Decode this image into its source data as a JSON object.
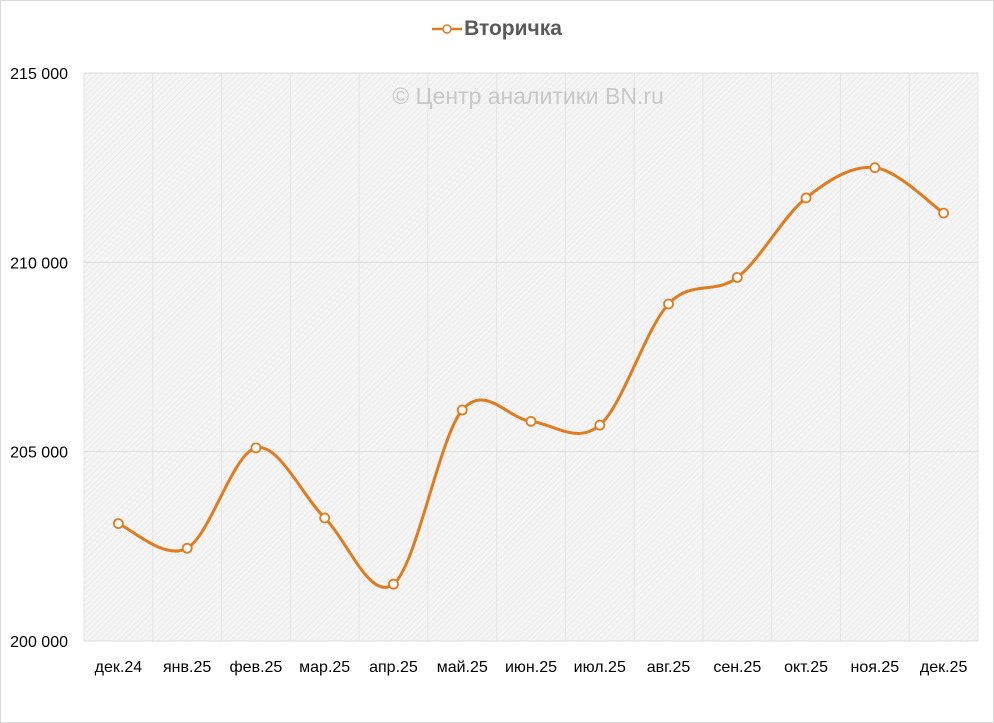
{
  "chart_data": {
    "type": "line",
    "title": "",
    "xlabel": "",
    "ylabel": "",
    "categories": [
      "дек.24",
      "янв.25",
      "фев.25",
      "мар.25",
      "апр.25",
      "май.25",
      "июн.25",
      "июл.25",
      "авг.25",
      "сен.25",
      "окт.25",
      "ноя.25",
      "дек.25"
    ],
    "series": [
      {
        "name": "Вторичка",
        "color": "#e07b1f",
        "values": [
          203100,
          202450,
          205100,
          203250,
          201500,
          206100,
          205800,
          205700,
          208900,
          209600,
          211700,
          212500,
          211300
        ]
      }
    ],
    "ylim": [
      200000,
      215000
    ],
    "yticks": [
      {
        "value": 200000,
        "label": "200 000"
      },
      {
        "value": 205000,
        "label": "205 000"
      },
      {
        "value": 210000,
        "label": "210 000"
      },
      {
        "value": 215000,
        "label": "215 000"
      }
    ],
    "legend_position": "top-center",
    "grid": true,
    "watermark": "© Центр аналитики BN.ru",
    "smooth": true,
    "marker": "hollow-circle",
    "plot_background": "#f2f2f2 hatched"
  }
}
